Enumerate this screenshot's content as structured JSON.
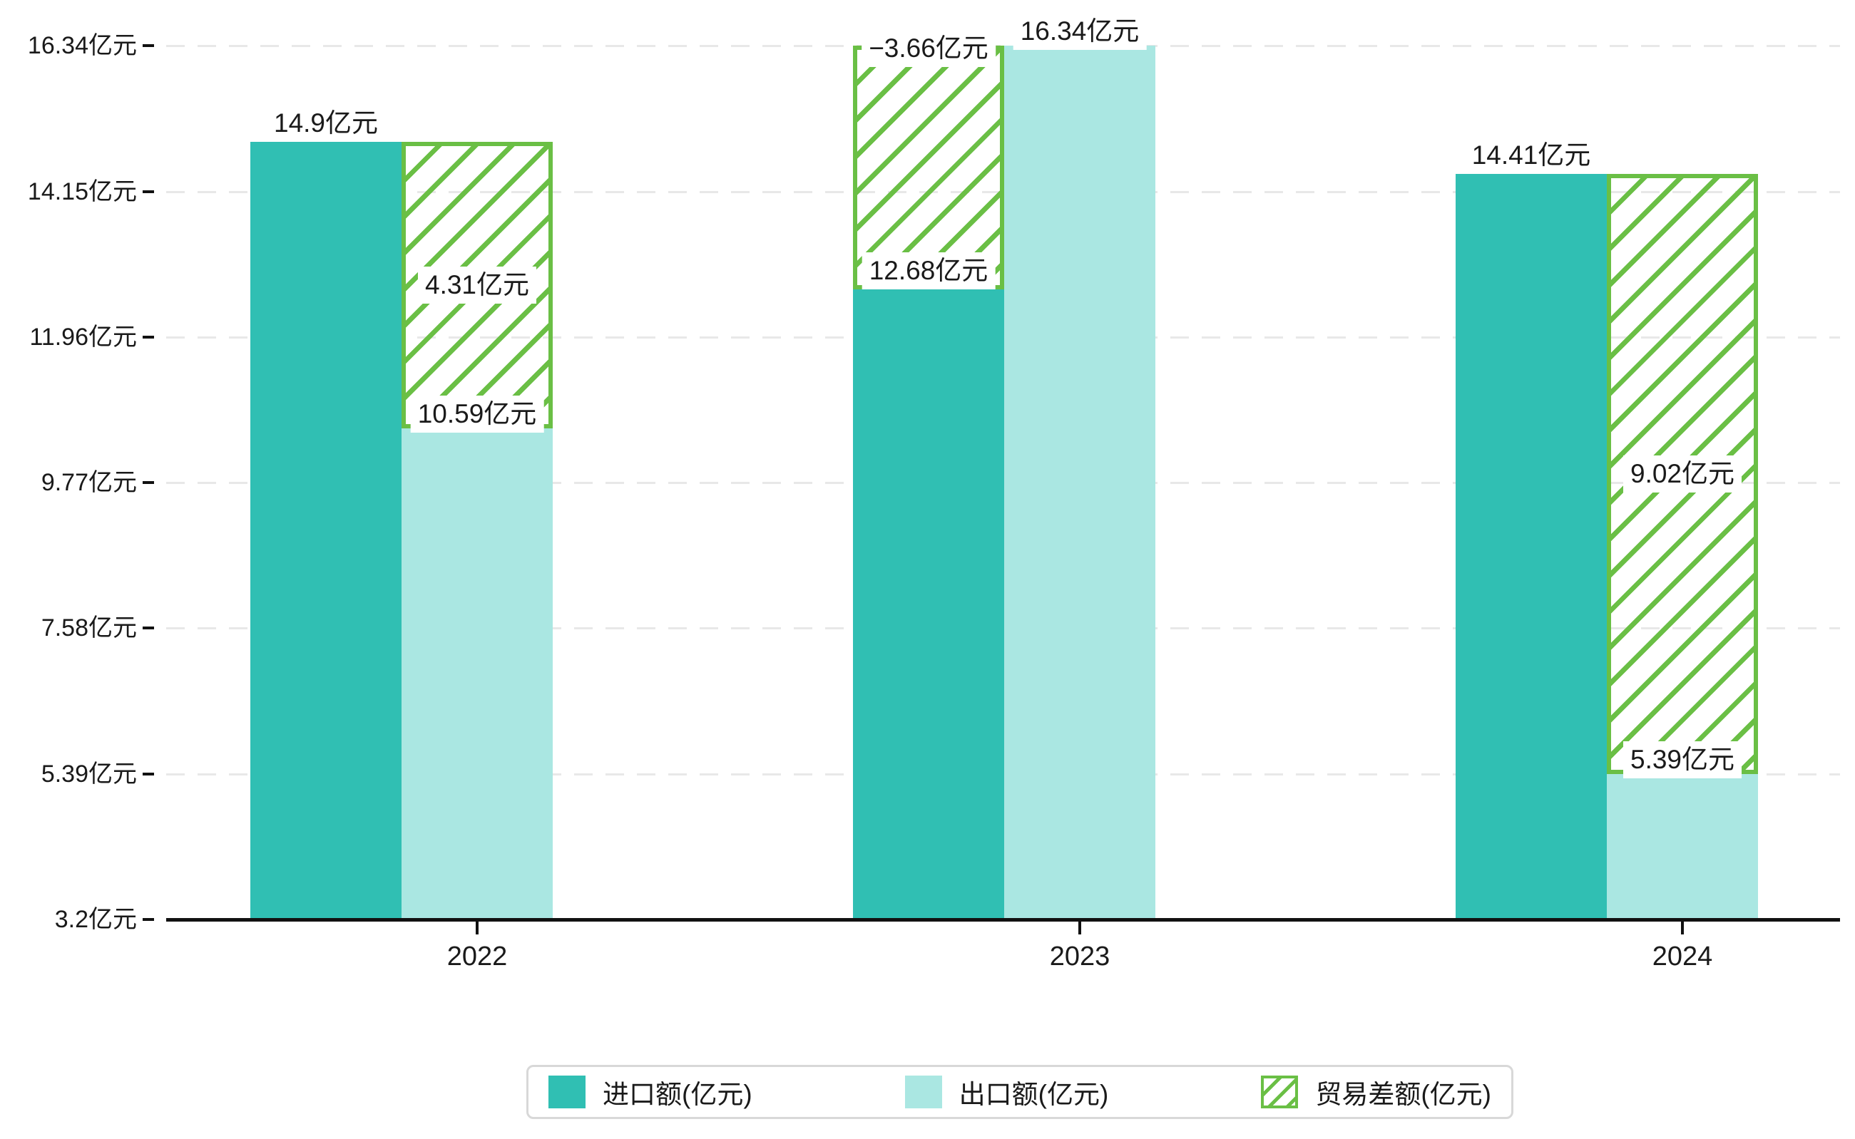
{
  "chart_data": {
    "type": "bar",
    "title": "",
    "unit": "亿元",
    "categories": [
      "2022",
      "2023",
      "2024"
    ],
    "series": [
      {
        "name": "进口额(亿元)",
        "role": "import",
        "color": "#30bfb3",
        "values": [
          14.9,
          12.68,
          14.41
        ],
        "labels": [
          "14.9亿元",
          "12.68亿元",
          "14.41亿元"
        ]
      },
      {
        "name": "出口额(亿元)",
        "role": "export",
        "color": "#aae7e2",
        "values": [
          10.59,
          16.34,
          5.39
        ],
        "labels": [
          "10.59亿元",
          "16.34亿元",
          "5.39亿元"
        ]
      },
      {
        "name": "贸易差额(亿元)",
        "role": "diff",
        "style": "hatch",
        "color": "#6abf45",
        "values": [
          4.31,
          -3.66,
          9.02
        ],
        "labels": [
          "4.31亿元",
          "−3.66亿元",
          "9.02亿元"
        ]
      }
    ],
    "y_axis": {
      "min": 3.2,
      "max": 16.34,
      "tick_step": 2.19,
      "ticks": [
        3.2,
        5.39,
        7.58,
        9.77,
        11.96,
        14.15,
        16.34
      ],
      "tick_labels": [
        "3.2亿元",
        "5.39亿元",
        "7.58亿元",
        "9.77亿元",
        "11.96亿元",
        "14.15亿元",
        "16.34亿元"
      ],
      "grid": "dashed"
    },
    "legend": {
      "position": "bottom",
      "items": [
        {
          "label": "进口额(亿元)",
          "swatch": "solid",
          "color": "#30bfb3"
        },
        {
          "label": "出口额(亿元)",
          "swatch": "solid",
          "color": "#aae7e2"
        },
        {
          "label": "贸易差额(亿元)",
          "swatch": "hatch",
          "color": "#6abf45"
        }
      ]
    },
    "colors": {
      "axis": "#111111",
      "grid": "#e8e8e8",
      "text": "#1a1a1a",
      "label_background": "#ffffff",
      "legend_border": "#d8d8d8"
    }
  }
}
